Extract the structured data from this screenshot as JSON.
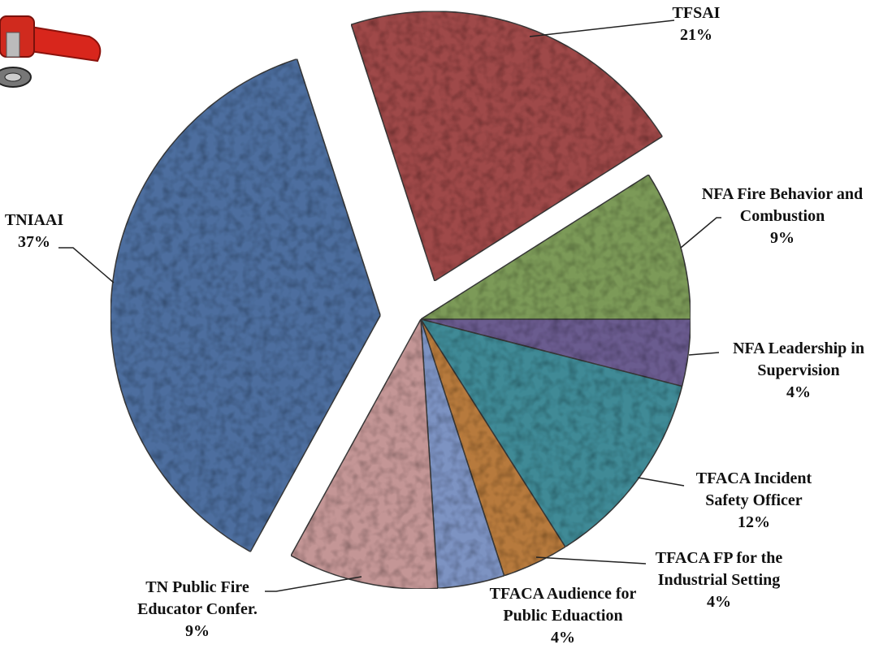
{
  "chart_data": {
    "type": "pie",
    "categories": [
      "NFA Leadership in Supervision",
      "TFACA Incident Safety Officer",
      "TFACA FP for the Industrial Setting",
      "TFACA Audience for Public Eduaction",
      "TN Public Fire Educator Confer.",
      "TNIAAI",
      "TFSAI",
      "NFA Fire Behavior and Combustion"
    ],
    "values": [
      4,
      12,
      4,
      4,
      9,
      37,
      21,
      9
    ],
    "value_labels": [
      "4%",
      "12%",
      "4%",
      "4%",
      "9%",
      "37%",
      "21%",
      "9%"
    ],
    "colors": [
      "#6b5b8f",
      "#3f8a96",
      "#b77a3c",
      "#7d93c2",
      "#c49696",
      "#4e6e9f",
      "#9f4848",
      "#7b9a58"
    ],
    "exploded": [
      false,
      false,
      false,
      false,
      false,
      true,
      true,
      false
    ]
  }
}
